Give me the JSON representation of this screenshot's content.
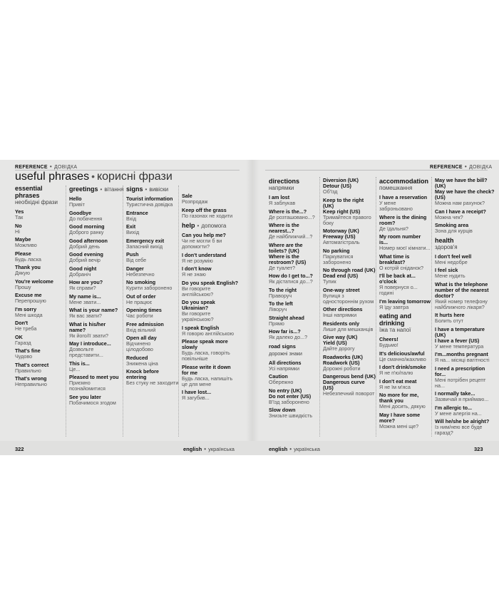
{
  "running_head": {
    "en": "REFERENCE",
    "uk": "ДОВІДКА"
  },
  "title": {
    "en": "useful phrases",
    "uk": "корисні фрази"
  },
  "footer": {
    "left_page": "322",
    "right_page": "323",
    "en": "english",
    "uk": "українська"
  },
  "columns": [
    [
      {
        "head": true,
        "en": "essential phrases",
        "uk": "необхідні фрази"
      },
      {
        "en": "Yes",
        "uk": "Так"
      },
      {
        "en": "No",
        "uk": "Ні"
      },
      {
        "en": "Maybe",
        "uk": "Можливо"
      },
      {
        "en": "Please",
        "uk": "Будь ласка"
      },
      {
        "en": "Thank you",
        "uk": "Дякую"
      },
      {
        "en": "You're welcome",
        "uk": "Прошу"
      },
      {
        "en": "Excuse me",
        "uk": "Перепрошую"
      },
      {
        "en": "I'm sorry",
        "uk": "Мені шкода"
      },
      {
        "en": "Don't",
        "uk": "Не треба"
      },
      {
        "en": "OK",
        "uk": "Гаразд"
      },
      {
        "en": "That's fine",
        "uk": "Чудово"
      },
      {
        "en": "That's correct",
        "uk": "Правильно"
      },
      {
        "en": "That's wrong",
        "uk": "Неправильно"
      }
    ],
    [
      {
        "head": true,
        "inline": true,
        "en": "greetings",
        "uk": "вітання"
      },
      {
        "en": "Hello",
        "uk": "Привіт"
      },
      {
        "en": "Goodbye",
        "uk": "До побачення"
      },
      {
        "en": "Good morning",
        "uk": "Доброго ранку"
      },
      {
        "en": "Good afternoon",
        "uk": "Добрий день"
      },
      {
        "en": "Good evening",
        "uk": "Добрий вечір"
      },
      {
        "en": "Good night",
        "uk": "Добраніч"
      },
      {
        "en": "How are you?",
        "uk": "Як справи?"
      },
      {
        "en": "My name is...",
        "uk": "Мене звати..."
      },
      {
        "en": "What is your name?",
        "uk": "Як вас звати?"
      },
      {
        "en": "What is his/her name?",
        "uk": "Як його/її звати?"
      },
      {
        "en": "May I introduce...",
        "uk": "Дозвольте представити..."
      },
      {
        "en": "This is...",
        "uk": "Це..."
      },
      {
        "en": "Pleased to meet you",
        "uk": "Приємно познайомитися"
      },
      {
        "en": "See you later",
        "uk": "Побачимося згодом"
      }
    ],
    [
      {
        "head": true,
        "inline": true,
        "en": "signs",
        "uk": "вивіски"
      },
      {
        "en": "Tourist information",
        "uk": "Туристична довідка"
      },
      {
        "en": "Entrance",
        "uk": "Вхід"
      },
      {
        "en": "Exit",
        "uk": "Вихід"
      },
      {
        "en": "Emergency exit",
        "uk": "Запасний вихід"
      },
      {
        "en": "Push",
        "uk": "Від себе"
      },
      {
        "en": "Danger",
        "uk": "Небезпечно"
      },
      {
        "en": "No smoking",
        "uk": "Курити заборонено"
      },
      {
        "en": "Out of order",
        "uk": "Не працює"
      },
      {
        "en": "Opening times",
        "uk": "Час роботи"
      },
      {
        "en": "Free admission",
        "uk": "Вхід вільний"
      },
      {
        "en": "Open all day",
        "uk": "Відчинено цілодобово"
      },
      {
        "en": "Reduced",
        "uk": "Знижена ціна"
      },
      {
        "en": "Knock before entering",
        "uk": "Без стуку не заходити"
      }
    ],
    [
      {
        "en": "Sale",
        "uk": "Розпродаж"
      },
      {
        "en": "Keep off the grass",
        "uk": "По газонах не ходити"
      },
      {
        "head": true,
        "inline": true,
        "en": "help",
        "uk": "допомога"
      },
      {
        "en": "Can you help me?",
        "uk": "Чи не могли б ви допомогти?"
      },
      {
        "en": "I don't understand",
        "uk": "Я не розумію"
      },
      {
        "en": "I don't know",
        "uk": "Я не знаю"
      },
      {
        "en": "Do you speak English?",
        "uk": "Ви говорите англійською?"
      },
      {
        "en": "Do you speak Ukrainian?",
        "uk": "Ви говорите українською?"
      },
      {
        "en": "I speak English",
        "uk": "Я говорю англійською"
      },
      {
        "en": "Please speak more slowly",
        "uk": "Будь ласка, говоріть повільніше"
      },
      {
        "en": "Please write it down for me",
        "uk": "Будь ласка, напишіть це для мене"
      },
      {
        "en": "I have lost...",
        "uk": "Я загубив..."
      }
    ],
    [
      {
        "head": true,
        "en": "directions",
        "uk": "напрямки"
      },
      {
        "en": "I am lost",
        "uk": "Я заблукав"
      },
      {
        "en": "Where is the...?",
        "uk": "Де розташовано...?"
      },
      {
        "en": "Where is the nearest...?",
        "uk": "Де найближчий...?"
      },
      {
        "en": "Where are the toilets? (UK)\nWhere is the restroom? (US)",
        "uk": "Де туалет?"
      },
      {
        "en": "How do I get to...?",
        "uk": "Як дістатися до...?"
      },
      {
        "en": "To the right",
        "uk": "Праворуч"
      },
      {
        "en": "To the left",
        "uk": "Ліворуч"
      },
      {
        "en": "Straight ahead",
        "uk": "Прямо"
      },
      {
        "en": "How far is...?",
        "uk": "Як далеко до...?"
      },
      {
        "head": true,
        "small": true,
        "en": "road signs",
        "uk": "дорожні знаки"
      },
      {
        "en": "All directions",
        "uk": "Усі напрямки"
      },
      {
        "en": "Caution",
        "uk": "Обережно"
      },
      {
        "en": "No entry (UK)\nDo not enter (US)",
        "uk": "В'їзд заборонено"
      },
      {
        "en": "Slow down",
        "uk": "Знизьте швидкість"
      }
    ],
    [
      {
        "en": "Diversion (UK)\nDetour (US)",
        "uk": "Об'їзд"
      },
      {
        "en": "Keep to the right (UK)\nKeep right (US)",
        "uk": "Тримайтеся правого боку"
      },
      {
        "en": "Motorway (UK)\nFreeway (US)",
        "uk": "Автомагістраль"
      },
      {
        "en": "No parking",
        "uk": "Паркуватися заборонено"
      },
      {
        "en": "No through road (UK)\nDead end (US)",
        "uk": "Тупик"
      },
      {
        "en": "One-way street",
        "uk": "Вулиця з одностороннім рухом"
      },
      {
        "en": "Other directions",
        "uk": "Інші напрямки"
      },
      {
        "en": "Residents only",
        "uk": "Лише для мешканців"
      },
      {
        "en": "Give way (UK)\nYield (US)",
        "uk": "Дайте дорогу"
      },
      {
        "en": "Roadworks (UK)\nRoadwork (US)",
        "uk": "Дорожні роботи"
      },
      {
        "en": "Dangerous bend (UK)\nDangerous curve (US)",
        "uk": "Небезпечний поворот"
      }
    ],
    [
      {
        "head": true,
        "en": "accommodation",
        "uk": "помешкання"
      },
      {
        "en": "I have a reservation",
        "uk": "У мене заброньовано"
      },
      {
        "en": "Where is the dining room?",
        "uk": "Де їдальня?"
      },
      {
        "en": "My room number is...",
        "uk": "Номер моєї кімнати..."
      },
      {
        "en": "What time is breakfast?",
        "uk": "О котрій сніданок?"
      },
      {
        "en": "I'll be back at... o'clock",
        "uk": "Я повернуся о... годині"
      },
      {
        "en": "I'm leaving tomorrow",
        "uk": "Я їду завтра"
      },
      {
        "head": true,
        "en": "eating and drinking",
        "uk": "їжа та напої"
      },
      {
        "en": "Cheers!",
        "uk": "Будьмо!"
      },
      {
        "en": "It's delicious/awful",
        "uk": "Це смачно/жахливо"
      },
      {
        "en": "I don't drink/smoke",
        "uk": "Я не п'ю/палю"
      },
      {
        "en": "I don't eat meat",
        "uk": "Я не їм м'яса"
      },
      {
        "en": "No more for me, thank you",
        "uk": "Мені досить, дякую"
      },
      {
        "en": "May I have some more?",
        "uk": "Можна мені ще?"
      }
    ],
    [
      {
        "en": "May we have the bill? (UK)\nMay we have the check? (US)",
        "uk": "Можна нам рахунок?"
      },
      {
        "en": "Can I have a receipt?",
        "uk": "Можна чек?"
      },
      {
        "en": "Smoking area",
        "uk": "Зона для курців"
      },
      {
        "head": true,
        "en": "health",
        "uk": "здоров'я"
      },
      {
        "en": "I don't feel well",
        "uk": "Мені недобре"
      },
      {
        "en": "I feel sick",
        "uk": "Мене нудить"
      },
      {
        "en": "What is the telephone number of the nearest doctor?",
        "uk": "Який номер телефону найближчого лікаря?"
      },
      {
        "en": "It hurts here",
        "uk": "Болить отут"
      },
      {
        "en": "I have a temperature (UK)\nI have a fever (US)",
        "uk": "У мене температура"
      },
      {
        "en": "I'm...months pregnant",
        "uk": "Я на... місяці вагітності"
      },
      {
        "en": "I need a prescription for...",
        "uk": "Мені потрібен рецепт на..."
      },
      {
        "en": "I normally take...",
        "uk": "Зазвичай я приймаю..."
      },
      {
        "en": "I'm allergic to...",
        "uk": "У мене алергія на..."
      },
      {
        "en": "Will he/she be alright?",
        "uk": "Із ним/нею все буде гаразд?"
      }
    ]
  ]
}
